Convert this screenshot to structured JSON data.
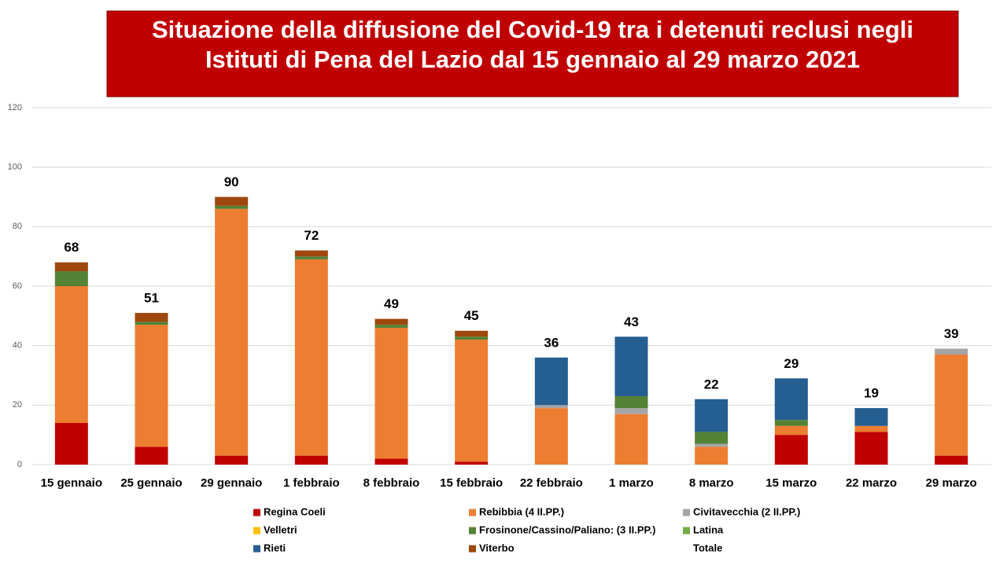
{
  "chart_data": {
    "type": "stacked_bar",
    "title": [
      "Situazione della diffusione del Covid-19 tra i detenuti reclusi negli",
      "Istituti di Pena del Lazio dal 15 gennaio al 29 marzo 2021"
    ],
    "categories": [
      "15 gennaio",
      "25 gennaio",
      "29 gennaio",
      "1 febbraio",
      "8 febbraio",
      "15 febbraio",
      "22 febbraio",
      "1 marzo",
      "8 marzo",
      "15 marzo",
      "22 marzo",
      "29 marzo"
    ],
    "series": [
      {
        "name": "Regina Coeli",
        "color": "#c00000",
        "values": [
          14,
          6,
          3,
          3,
          2,
          1,
          0,
          0,
          0,
          10,
          11,
          3
        ]
      },
      {
        "name": "Rebibbia (4 II.PP.)",
        "color": "#ed7d31",
        "values": [
          46,
          41,
          83,
          66,
          44,
          41,
          19,
          17,
          6,
          3,
          2,
          34
        ]
      },
      {
        "name": "Civitavecchia (2 II.PP.)",
        "color": "#a5a5a5",
        "values": [
          0,
          0,
          0,
          0,
          0,
          0,
          1,
          2,
          1,
          0,
          0,
          2
        ]
      },
      {
        "name": "Velletri",
        "color": "#ffc000",
        "values": [
          0,
          0,
          0,
          0,
          0,
          0,
          0,
          0,
          0,
          0,
          0,
          0
        ]
      },
      {
        "name": "Frosinone/Cassino/Paliano: (3 II.PP.)",
        "color": "#548235",
        "values": [
          5,
          1,
          1,
          1,
          1,
          1,
          0,
          4,
          4,
          2,
          0,
          0
        ]
      },
      {
        "name": "Latina",
        "color": "#70ad47",
        "values": [
          0,
          0,
          0,
          0,
          0,
          0,
          0,
          0,
          0,
          0,
          0,
          0
        ]
      },
      {
        "name": "Rieti",
        "color": "#255e91",
        "values": [
          0,
          0,
          0,
          0,
          0,
          0,
          16,
          20,
          11,
          14,
          6,
          0
        ]
      },
      {
        "name": "Viterbo",
        "color": "#9e480e",
        "values": [
          3,
          3,
          3,
          2,
          2,
          2,
          0,
          0,
          0,
          0,
          0,
          0
        ]
      }
    ],
    "totals": {
      "name": "Totale",
      "values": [
        68,
        51,
        90,
        72,
        49,
        45,
        36,
        43,
        22,
        29,
        19,
        39
      ]
    },
    "ylim": [
      0,
      120
    ],
    "yticks": [
      0,
      20,
      40,
      60,
      80,
      100,
      120
    ],
    "grid": true
  }
}
